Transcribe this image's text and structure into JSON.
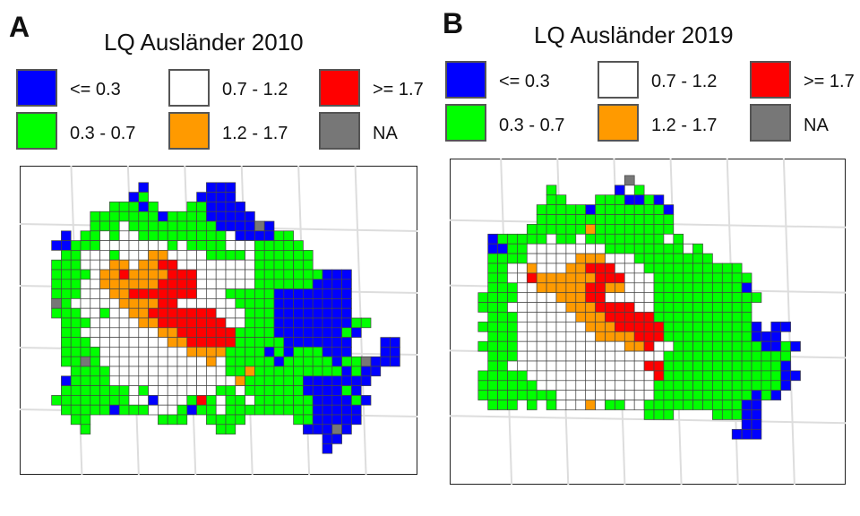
{
  "figure": {
    "palette": {
      "low": "#0000ff",
      "mid_low": "#00ff00",
      "mid": "#ffffff",
      "mid_high": "#ff9a00",
      "high": "#ff0000",
      "na": "#777777",
      "grid": "#dddddd",
      "cell_border": "#444444"
    },
    "legend": [
      {
        "key": "low",
        "label": "<= 0.3"
      },
      {
        "key": "mid_low",
        "label": "0.3 - 0.7"
      },
      {
        "key": "mid",
        "label": "0.7 - 1.2"
      },
      {
        "key": "mid_high",
        "label": "1.2 - 1.7"
      },
      {
        "key": "high",
        "label": ">= 1.7"
      },
      {
        "key": "na",
        "label": "NA"
      }
    ]
  },
  "panels": [
    {
      "letter": "A",
      "title": "LQ Ausländer 2010",
      "map_rows": [
        "......................................",
        "...........B......BBB.................",
        "..........BG.....BBBB.................",
        "........GGGBG...GGBBBB................",
        "......GGGGGGGBGGGGBBBBB...............",
        "......GGGWGGGGGGGGGBBBBNB.............",
        "...B.GGWGWWGGGGGGGGGWBBBBGG...........",
        "..BBGGGWWWWWWWGWGGGGWWWGGGGG..........",
        "...GGWWWGWWWOOWWWWGGGGWGGGGGG.........",
        "..GGGWWWOOWOORRWWWWWWWWGGGGGG.........",
        "..GGGGWOOROOOORRRWWWWWWGGGGGGGBBB.....",
        "..GGGWWOOOOOORRRRWWWWWWGGGGGGBBBB.....",
        "..GGGWWWOORRRRRRRWWWGGGGGBBBBBBBB.....",
        "..NGWWWWWOOOORRWWWWWWGGGGBBBBBBBB.....",
        "..GGGWWGWWOORRRRRRRWWWGGGBBBBBBBB.....",
        "...GGGWWWWWOORRRRRRRWWGGGBBBBBBBBGG...",
        "...GGWWWWWWWWOORRRRRRGGGGBBBBBBBGB....",
        "...GGGWWWWWWWWOORRRRRGGGGGBBBBBBB...BB",
        "...GGGGWWWWWWWWWOOOOGGGGBGBGGGBBB...BB",
        "...GGNGWWWWWWWWWWWOWGGGGGBGGGGGBGGNBBB",
        "....GGGGWWWWWWWWWWWWGGOGGGGGGGGGBGBB..",
        "...BGGGGWWWWWWWWWWWWWOGGGGGGBBBBBBB...",
        "...GGGGGGGWGWWWWWWWGGWGGGGGGBBBBGB....",
        "..GGGGGGGGWWBWWWGRGWGGWGGGGGGBBBBGB...",
        "...GGGGGBGGGWWWGBGGWGGGGGGGGGBBBBB....",
        "....GG.......GGG..GGGG.....GGBBBBB....",
        ".....G.............GG.......BBBNB.....",
        "..............................BB......",
        "..............................B......."
      ]
    },
    {
      "letter": "B",
      "title": "LQ Ausländer 2019",
      "map_rows": [
        "...................................",
        ".................N.................",
        ".........G......B.G................",
        ".........GG...GGGBBGB..............",
        "........GGGGGBGGGGGGGB.............",
        "........GGGGGGGGGGGGGG.............",
        ".......GGGGGGOGGGGGGGG.............",
        "...BGGGGGWGGWGGGGGGGGWG............",
        "...BBGGWWWWWWWWGGGGGGGGWG..........",
        "...GGGGWWWWWOOOWWWGGGGGGGG.........",
        "...GGWWOWWWOORRRWWWGGGGGGGGGG......",
        "...GGWWROOOOOORRRWWWGGGGGGGGGG.....",
        "...GGGWWOOOOORROOWWWGGGGGGGGGB.....",
        "..GGGGWWWWOOORRWWWWWGGGGGGGGGGG....",
        "..GGGWWWWWWOOORRRRWWGGGGGGGGGG.....",
        "...GGGWWWWWWOOORRRRRGGGGGGGGGG.....",
        "..GGGGWWWWWWWOOORRRRRGGGGGGGGGB.BB.",
        "...GGGWWWWWWWWOOOORRRGGGGGGGGGBBB..",
        "..GGGGWWWWWWWWWWWOORWWGGGGGGGGGBBGB",
        "...GGGWWWWWWWWWWWWWWWGGGGGGGGGGGGG.",
        "...GGWWWWWWWWWWWWWWRRGGGGGGGGGGGGB.",
        "..GGGGGWWWWWWWWWWWWWRGGGGGGGGGGGGBB",
        "..GGGGGGWWWWWWWWWWWWGGGGGGGGGGGGGB.",
        "..GGGGGGGGWWWWWWWWWWGGGGGGGGGGBGB..",
        "...GGG.G.GWWWOWGGWWGGGGGGGGGGBB....",
        "...................GGG....GGGBB....",
        ".............................BB....",
        "............................BBB....",
        "..................................."
      ]
    }
  ]
}
